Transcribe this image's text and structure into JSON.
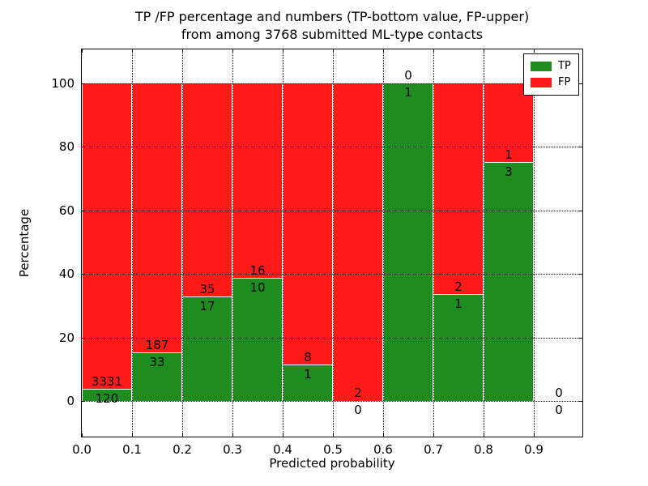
{
  "figure": {
    "title_line1": "TP /FP percentage and numbers (TP-bottom value, FP-upper)",
    "title_line2": "from among 3768 submitted ML-type contacts",
    "xlabel": "Predicted probability",
    "ylabel": "Percentage"
  },
  "legend": {
    "items": [
      {
        "label": "TP",
        "color": "#1e8c1e"
      },
      {
        "label": "FP",
        "color": "#ff1a1a"
      }
    ],
    "position": "upper right"
  },
  "chart_data": {
    "type": "bar",
    "stacked": true,
    "normalized_to_percent": true,
    "title": "TP /FP percentage and numbers (TP-bottom value, FP-upper) from among 3768 submitted ML-type contacts",
    "xlabel": "Predicted probability",
    "ylabel": "Percentage",
    "total_contacts": 3768,
    "bin_width": 0.1,
    "categories": [
      "0.0-0.1",
      "0.1-0.2",
      "0.2-0.3",
      "0.3-0.4",
      "0.4-0.5",
      "0.5-0.6",
      "0.6-0.7",
      "0.7-0.8",
      "0.8-0.9",
      "0.9-1.0"
    ],
    "x_tick_labels": [
      "0.0",
      "0.1",
      "0.2",
      "0.3",
      "0.4",
      "0.5",
      "0.6",
      "0.7",
      "0.8",
      "0.9"
    ],
    "y_tick_labels": [
      "0",
      "20",
      "40",
      "60",
      "80",
      "100"
    ],
    "y_ticks": [
      0,
      20,
      40,
      60,
      80,
      100
    ],
    "xlim": [
      0.0,
      1.0
    ],
    "ylim": [
      0,
      100
    ],
    "grid": true,
    "grid_style": "dotted",
    "series": [
      {
        "name": "TP",
        "color": "#1e8c1e",
        "counts": [
          120,
          33,
          17,
          10,
          1,
          0,
          1,
          1,
          3,
          0
        ]
      },
      {
        "name": "FP",
        "color": "#ff1a1a",
        "counts": [
          3331,
          187,
          35,
          16,
          8,
          2,
          0,
          2,
          1,
          0
        ]
      }
    ]
  }
}
